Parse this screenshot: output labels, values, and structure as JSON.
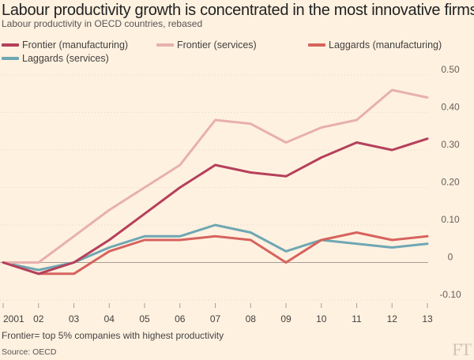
{
  "chart_data": {
    "type": "line",
    "title": "Labour productivity growth is concentrated in the most innovative firms",
    "subtitle": "Labour productivity in OECD countries, rebased",
    "x": [
      "2001",
      "02",
      "03",
      "04",
      "05",
      "06",
      "07",
      "08",
      "09",
      "10",
      "11",
      "12",
      "13"
    ],
    "y_ticks": [
      -0.1,
      0,
      0.1,
      0.2,
      0.3,
      0.4,
      0.5
    ],
    "y_tick_labels": [
      "-0.10",
      "0",
      "0.10",
      "0.20",
      "0.30",
      "0.40",
      "0.50"
    ],
    "ylim": [
      -0.1,
      0.5
    ],
    "series": [
      {
        "name": "Frontier (manufacturing)",
        "color": "#b5405b",
        "values": [
          0.0,
          -0.03,
          0.0,
          0.06,
          0.13,
          0.2,
          0.26,
          0.24,
          0.23,
          0.28,
          0.32,
          0.3,
          0.33
        ]
      },
      {
        "name": "Frontier (services)",
        "color": "#e7b0ad",
        "values": [
          0.0,
          0.0,
          0.07,
          0.14,
          0.2,
          0.26,
          0.38,
          0.37,
          0.32,
          0.36,
          0.38,
          0.46,
          0.44
        ]
      },
      {
        "name": "Laggards (manufacturing)",
        "color": "#d6635d",
        "values": [
          0.0,
          -0.03,
          -0.03,
          0.03,
          0.06,
          0.06,
          0.07,
          0.06,
          0.0,
          0.06,
          0.08,
          0.06,
          0.07
        ]
      },
      {
        "name": "Laggards (services)",
        "color": "#6ea7b3",
        "values": [
          0.0,
          -0.02,
          0.0,
          0.04,
          0.07,
          0.07,
          0.1,
          0.08,
          0.03,
          0.06,
          0.05,
          0.04,
          0.05
        ]
      }
    ],
    "legend_position": "top",
    "footnote": "Frontier= top 5% companies with highest productivity",
    "source": "Source: OECD"
  },
  "logo": "FT"
}
